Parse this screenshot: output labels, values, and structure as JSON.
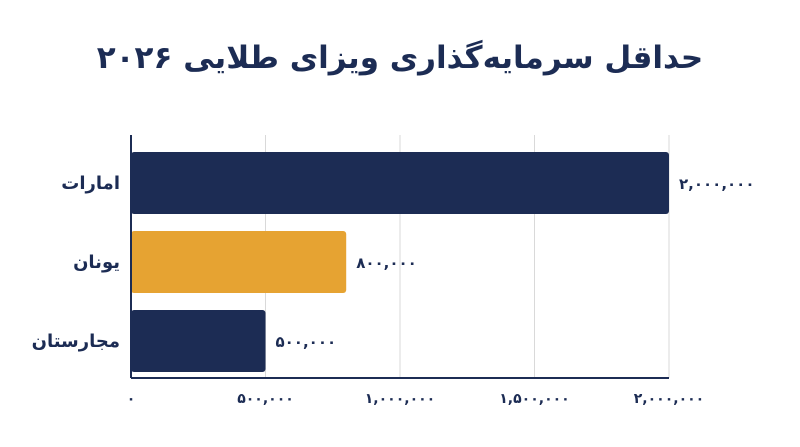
{
  "chart_data": {
    "type": "bar",
    "orientation": "horizontal",
    "title": "حداقل سرمایه‌گذاری ویزای طلایی ۲۰۲۶",
    "categories": [
      "امارات",
      "یونان",
      "مجارستان"
    ],
    "values": [
      2000000,
      800000,
      500000
    ],
    "value_labels": [
      "۲,۰۰۰,۰۰۰",
      "۸۰۰,۰۰۰",
      "۵۰۰,۰۰۰"
    ],
    "bar_colors": [
      "#1c2c54",
      "#e6a332",
      "#1c2c54"
    ],
    "xlim": [
      0,
      2000000
    ],
    "xticks": [
      0,
      500000,
      1000000,
      1500000,
      2000000
    ],
    "xtick_labels": [
      "۰",
      "۵۰۰,۰۰۰",
      "۱,۰۰۰,۰۰۰",
      "۱,۵۰۰,۰۰۰",
      "۲,۰۰۰,۰۰۰"
    ],
    "grid": "vertical",
    "xlabel": "",
    "ylabel": ""
  }
}
